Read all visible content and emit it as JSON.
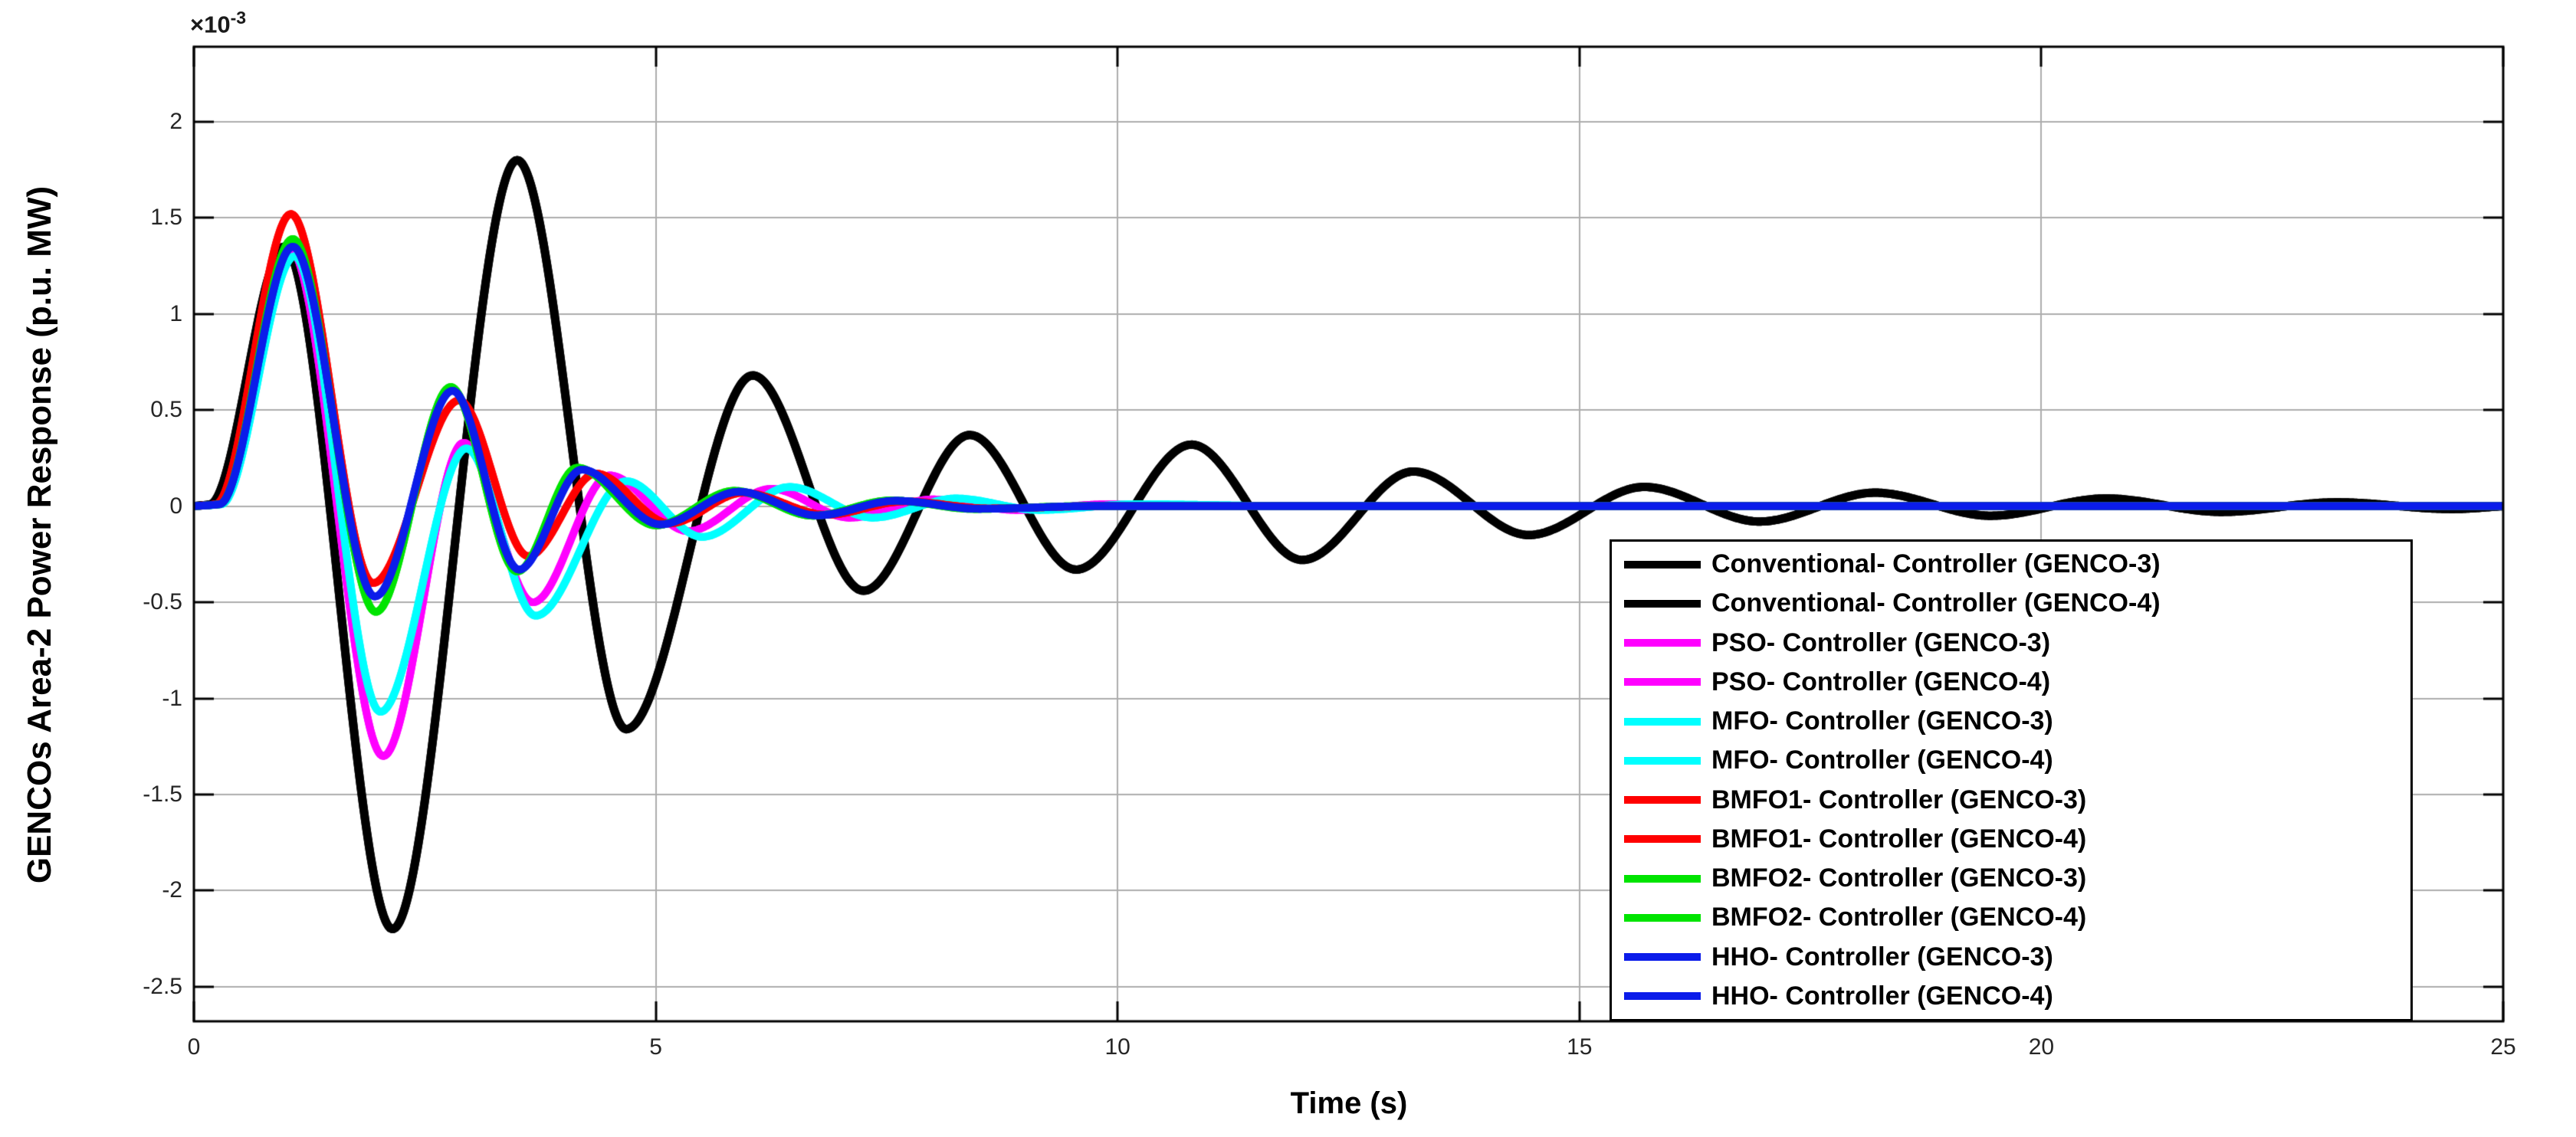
{
  "figure": {
    "background": "#ffffff",
    "axis_color": "#000000",
    "grid_color": "#adadad",
    "tick_color": "#000000",
    "tick_label_color": "#262626",
    "exponent_base": "×10",
    "exponent_power": "-3"
  },
  "chart_data": {
    "type": "line",
    "title": "",
    "xlabel": "Time (s)",
    "ylabel": "GENCOs Area-2 Power Response (p.u. MW)",
    "y_scale_note": "y values are in units of 1e-3 p.u. MW (axis exponent ×10^-3)",
    "xlim": [
      0,
      25
    ],
    "ylim": [
      -2.68,
      2.39
    ],
    "x_ticks": [
      0,
      5,
      10,
      15,
      20,
      25
    ],
    "y_ticks": [
      2,
      1.5,
      1,
      0.5,
      0,
      -0.5,
      -1,
      -1.5,
      -2,
      -2.5
    ],
    "grid": true,
    "legend_position": "inside lower right",
    "series": [
      {
        "name": "Conventional- Controller (GENCO-3)",
        "color": "#000000",
        "width": 11,
        "keypoints": [
          [
            0,
            0
          ],
          [
            0.18,
            0.01
          ],
          [
            0.98,
            1.35
          ],
          [
            2.15,
            -2.2
          ],
          [
            3.5,
            1.8
          ],
          [
            4.68,
            -1.16
          ],
          [
            6.05,
            0.68
          ],
          [
            7.25,
            -0.44
          ],
          [
            8.4,
            0.37
          ],
          [
            9.55,
            -0.33
          ],
          [
            10.8,
            0.32
          ],
          [
            12.0,
            -0.28
          ],
          [
            13.2,
            0.18
          ],
          [
            14.45,
            -0.15
          ],
          [
            15.7,
            0.1
          ],
          [
            16.95,
            -0.08
          ],
          [
            18.2,
            0.07
          ],
          [
            19.45,
            -0.05
          ],
          [
            20.7,
            0.04
          ],
          [
            21.95,
            -0.03
          ],
          [
            23.2,
            0.02
          ],
          [
            24.45,
            -0.015
          ],
          [
            25,
            0
          ]
        ]
      },
      {
        "name": "Conventional- Controller (GENCO-4)",
        "color": "#000000",
        "width": 11,
        "keypoints": [
          [
            0,
            0
          ],
          [
            0.18,
            0.01
          ],
          [
            0.98,
            1.35
          ],
          [
            2.15,
            -2.2
          ],
          [
            3.5,
            1.8
          ],
          [
            4.68,
            -1.16
          ],
          [
            6.05,
            0.68
          ],
          [
            7.25,
            -0.44
          ],
          [
            8.4,
            0.37
          ],
          [
            9.55,
            -0.33
          ],
          [
            10.8,
            0.32
          ],
          [
            12.0,
            -0.28
          ],
          [
            13.2,
            0.18
          ],
          [
            14.45,
            -0.15
          ],
          [
            15.7,
            0.1
          ],
          [
            16.95,
            -0.08
          ],
          [
            18.2,
            0.07
          ],
          [
            19.45,
            -0.05
          ],
          [
            20.7,
            0.04
          ],
          [
            21.95,
            -0.03
          ],
          [
            23.2,
            0.02
          ],
          [
            24.45,
            -0.015
          ],
          [
            25,
            0
          ]
        ]
      },
      {
        "name": "PSO- Controller (GENCO-3)",
        "color": "#ff00ff",
        "width": 10,
        "keypoints": [
          [
            0,
            0
          ],
          [
            0.26,
            0.01
          ],
          [
            1.04,
            1.34
          ],
          [
            2.05,
            -1.3
          ],
          [
            2.92,
            0.33
          ],
          [
            3.67,
            -0.5
          ],
          [
            4.5,
            0.16
          ],
          [
            5.35,
            -0.13
          ],
          [
            6.25,
            0.09
          ],
          [
            7.1,
            -0.06
          ],
          [
            8.0,
            0.035
          ],
          [
            8.9,
            -0.02
          ],
          [
            9.9,
            0.01
          ],
          [
            11.5,
            0
          ],
          [
            25,
            0
          ]
        ]
      },
      {
        "name": "PSO- Controller (GENCO-4)",
        "color": "#ff00ff",
        "width": 10,
        "keypoints": [
          [
            0,
            0
          ],
          [
            0.26,
            0.01
          ],
          [
            1.04,
            1.34
          ],
          [
            2.05,
            -1.3
          ],
          [
            2.92,
            0.33
          ],
          [
            3.67,
            -0.5
          ],
          [
            4.5,
            0.16
          ],
          [
            5.35,
            -0.13
          ],
          [
            6.25,
            0.09
          ],
          [
            7.1,
            -0.06
          ],
          [
            8.0,
            0.035
          ],
          [
            8.9,
            -0.02
          ],
          [
            9.9,
            0.01
          ],
          [
            11.5,
            0
          ],
          [
            25,
            0
          ]
        ]
      },
      {
        "name": "MFO- Controller (GENCO-3)",
        "color": "#00ffff",
        "width": 10,
        "keypoints": [
          [
            0,
            0
          ],
          [
            0.3,
            0.01
          ],
          [
            1.09,
            1.3
          ],
          [
            2.02,
            -1.07
          ],
          [
            2.95,
            0.3
          ],
          [
            3.7,
            -0.57
          ],
          [
            4.68,
            0.13
          ],
          [
            5.5,
            -0.16
          ],
          [
            6.45,
            0.1
          ],
          [
            7.35,
            -0.06
          ],
          [
            8.25,
            0.04
          ],
          [
            9.15,
            -0.02
          ],
          [
            10.2,
            0.01
          ],
          [
            12,
            0
          ],
          [
            25,
            0
          ]
        ]
      },
      {
        "name": "MFO- Controller (GENCO-4)",
        "color": "#00ffff",
        "width": 10,
        "keypoints": [
          [
            0,
            0
          ],
          [
            0.3,
            0.01
          ],
          [
            1.09,
            1.3
          ],
          [
            2.02,
            -1.07
          ],
          [
            2.95,
            0.3
          ],
          [
            3.7,
            -0.57
          ],
          [
            4.68,
            0.13
          ],
          [
            5.5,
            -0.16
          ],
          [
            6.45,
            0.1
          ],
          [
            7.35,
            -0.06
          ],
          [
            8.25,
            0.04
          ],
          [
            9.15,
            -0.02
          ],
          [
            10.2,
            0.01
          ],
          [
            12,
            0
          ],
          [
            25,
            0
          ]
        ]
      },
      {
        "name": "BMFO1- Controller (GENCO-3)",
        "color": "#ff0000",
        "width": 10,
        "keypoints": [
          [
            0,
            0
          ],
          [
            0.24,
            0.01
          ],
          [
            1.05,
            1.52
          ],
          [
            1.94,
            -0.4
          ],
          [
            2.87,
            0.55
          ],
          [
            3.62,
            -0.26
          ],
          [
            4.35,
            0.17
          ],
          [
            5.15,
            -0.09
          ],
          [
            5.95,
            0.07
          ],
          [
            6.85,
            -0.045
          ],
          [
            7.7,
            0.025
          ],
          [
            8.6,
            -0.012
          ],
          [
            9.8,
            0
          ],
          [
            25,
            0
          ]
        ]
      },
      {
        "name": "BMFO1- Controller (GENCO-4)",
        "color": "#ff0000",
        "width": 10,
        "keypoints": [
          [
            0,
            0
          ],
          [
            0.24,
            0.01
          ],
          [
            1.05,
            1.52
          ],
          [
            1.94,
            -0.4
          ],
          [
            2.87,
            0.55
          ],
          [
            3.62,
            -0.26
          ],
          [
            4.35,
            0.17
          ],
          [
            5.15,
            -0.09
          ],
          [
            5.95,
            0.07
          ],
          [
            6.85,
            -0.045
          ],
          [
            7.7,
            0.025
          ],
          [
            8.6,
            -0.012
          ],
          [
            9.8,
            0
          ],
          [
            25,
            0
          ]
        ]
      },
      {
        "name": "BMFO2- Controller (GENCO-3)",
        "color": "#00e400",
        "width": 10,
        "keypoints": [
          [
            0,
            0
          ],
          [
            0.28,
            0.01
          ],
          [
            1.07,
            1.39
          ],
          [
            1.97,
            -0.55
          ],
          [
            2.78,
            0.62
          ],
          [
            3.5,
            -0.34
          ],
          [
            4.15,
            0.2
          ],
          [
            5.0,
            -0.1
          ],
          [
            5.85,
            0.08
          ],
          [
            6.7,
            -0.05
          ],
          [
            7.55,
            0.03
          ],
          [
            8.45,
            -0.015
          ],
          [
            9.6,
            0
          ],
          [
            25,
            0
          ]
        ]
      },
      {
        "name": "BMFO2- Controller (GENCO-4)",
        "color": "#00e400",
        "width": 10,
        "keypoints": [
          [
            0,
            0
          ],
          [
            0.28,
            0.01
          ],
          [
            1.07,
            1.39
          ],
          [
            1.97,
            -0.55
          ],
          [
            2.78,
            0.62
          ],
          [
            3.5,
            -0.34
          ],
          [
            4.15,
            0.2
          ],
          [
            5.0,
            -0.1
          ],
          [
            5.85,
            0.08
          ],
          [
            6.7,
            -0.05
          ],
          [
            7.55,
            0.03
          ],
          [
            8.45,
            -0.015
          ],
          [
            9.6,
            0
          ],
          [
            25,
            0
          ]
        ]
      },
      {
        "name": "HHO- Controller (GENCO-3)",
        "color": "#0b1cea",
        "width": 10,
        "keypoints": [
          [
            0,
            0
          ],
          [
            0.28,
            0.01
          ],
          [
            1.07,
            1.35
          ],
          [
            1.96,
            -0.47
          ],
          [
            2.8,
            0.6
          ],
          [
            3.52,
            -0.33
          ],
          [
            4.2,
            0.19
          ],
          [
            5.05,
            -0.095
          ],
          [
            5.9,
            0.075
          ],
          [
            6.75,
            -0.048
          ],
          [
            7.6,
            0.028
          ],
          [
            8.5,
            -0.014
          ],
          [
            9.7,
            0
          ],
          [
            25,
            0
          ]
        ]
      },
      {
        "name": "HHO- Controller (GENCO-4)",
        "color": "#0b1cea",
        "width": 10,
        "keypoints": [
          [
            0,
            0
          ],
          [
            0.28,
            0.01
          ],
          [
            1.07,
            1.35
          ],
          [
            1.96,
            -0.47
          ],
          [
            2.8,
            0.6
          ],
          [
            3.52,
            -0.33
          ],
          [
            4.2,
            0.19
          ],
          [
            5.05,
            -0.095
          ],
          [
            5.9,
            0.075
          ],
          [
            6.75,
            -0.048
          ],
          [
            7.6,
            0.028
          ],
          [
            8.5,
            -0.014
          ],
          [
            9.7,
            0
          ],
          [
            25,
            0
          ]
        ]
      }
    ]
  }
}
